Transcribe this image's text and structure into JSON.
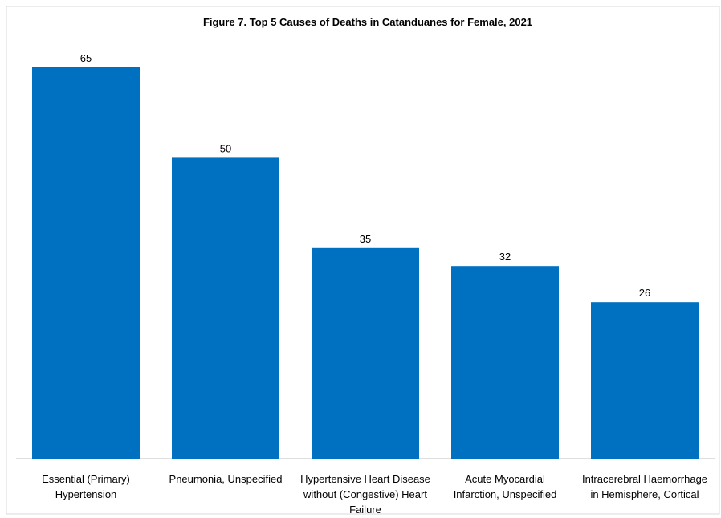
{
  "chart_data": {
    "type": "bar",
    "title": "Figure 7. Top 5 Causes of Deaths in Catanduanes for Female, 2021",
    "categories": [
      [
        "Essential (Primary)",
        "Hypertension"
      ],
      [
        "Pneumonia, Unspecified"
      ],
      [
        "Hypertensive Heart Disease",
        "without (Congestive) Heart",
        "Failure"
      ],
      [
        "Acute Myocardial",
        "Infarction, Unspecified"
      ],
      [
        "Intracerebral Haemorrhage",
        "in Hemisphere, Cortical"
      ]
    ],
    "values": [
      65,
      50,
      35,
      32,
      26
    ],
    "ylim": [
      0,
      65
    ],
    "grid": false,
    "bar_color": "#0070C0"
  }
}
